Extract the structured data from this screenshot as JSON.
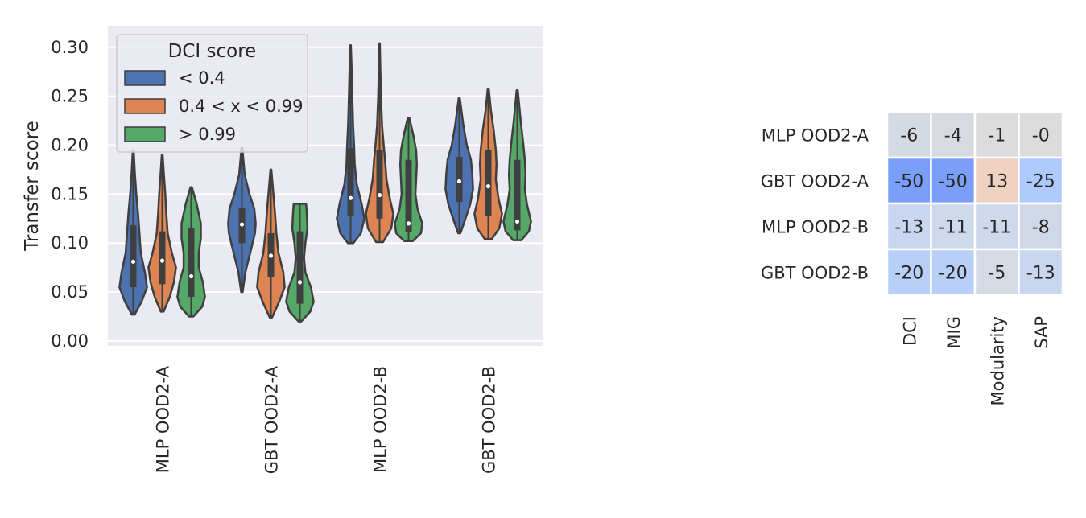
{
  "chart_data": [
    {
      "type": "violin",
      "ylabel": "Transfer score",
      "xlabel": "",
      "ylim": [
        -0.005,
        0.322
      ],
      "yticks": [
        "0.00",
        "0.05",
        "0.10",
        "0.15",
        "0.20",
        "0.25",
        "0.30"
      ],
      "grid": true,
      "legend": {
        "title": "DCI score",
        "placement": "top-left",
        "items": [
          "< 0.4",
          "0.4 < x < 0.99",
          "> 0.99"
        ]
      },
      "categories": [
        "MLP  OOD2-A",
        "GBT  OOD2-A",
        "MLP  OOD2-B",
        "GBT  OOD2-B"
      ],
      "series": [
        {
          "name": "< 0.4",
          "color": "#4c72b0",
          "groups": [
            {
              "min": 0.027,
              "max": 0.195,
              "q1": 0.055,
              "median": 0.081,
              "q3": 0.118,
              "profile": [
                [
                  0.027,
                  0.1
                ],
                [
                  0.04,
                  0.6
                ],
                [
                  0.055,
                  1.0
                ],
                [
                  0.07,
                  0.85
                ],
                [
                  0.09,
                  0.55
                ],
                [
                  0.11,
                  0.45
                ],
                [
                  0.13,
                  0.35
                ],
                [
                  0.15,
                  0.22
                ],
                [
                  0.17,
                  0.12
                ],
                [
                  0.195,
                  0.03
                ]
              ]
            },
            {
              "min": 0.05,
              "max": 0.197,
              "q1": 0.1,
              "median": 0.119,
              "q3": 0.136,
              "profile": [
                [
                  0.05,
                  0.05
                ],
                [
                  0.07,
                  0.25
                ],
                [
                  0.09,
                  0.6
                ],
                [
                  0.11,
                  0.95
                ],
                [
                  0.12,
                  1.0
                ],
                [
                  0.135,
                  0.9
                ],
                [
                  0.15,
                  0.55
                ],
                [
                  0.17,
                  0.2
                ],
                [
                  0.197,
                  0.03
                ]
              ]
            },
            {
              "min": 0.1,
              "max": 0.302,
              "q1": 0.128,
              "median": 0.146,
              "q3": 0.197,
              "profile": [
                [
                  0.1,
                  0.2
                ],
                [
                  0.11,
                  0.75
                ],
                [
                  0.125,
                  1.0
                ],
                [
                  0.14,
                  0.8
                ],
                [
                  0.16,
                  0.45
                ],
                [
                  0.18,
                  0.3
                ],
                [
                  0.2,
                  0.25
                ],
                [
                  0.22,
                  0.18
                ],
                [
                  0.25,
                  0.12
                ],
                [
                  0.28,
                  0.07
                ],
                [
                  0.302,
                  0.02
                ]
              ]
            },
            {
              "min": 0.11,
              "max": 0.248,
              "q1": 0.142,
              "median": 0.163,
              "q3": 0.188,
              "profile": [
                [
                  0.11,
                  0.08
                ],
                [
                  0.125,
                  0.45
                ],
                [
                  0.14,
                  0.8
                ],
                [
                  0.155,
                  1.0
                ],
                [
                  0.17,
                  0.95
                ],
                [
                  0.185,
                  0.85
                ],
                [
                  0.2,
                  0.55
                ],
                [
                  0.22,
                  0.3
                ],
                [
                  0.248,
                  0.04
                ]
              ]
            }
          ]
        },
        {
          "name": "0.4 < x < 0.99",
          "color": "#dd8452",
          "groups": [
            {
              "min": 0.03,
              "max": 0.19,
              "q1": 0.058,
              "median": 0.082,
              "q3": 0.112,
              "profile": [
                [
                  0.03,
                  0.1
                ],
                [
                  0.045,
                  0.55
                ],
                [
                  0.06,
                  0.85
                ],
                [
                  0.075,
                  1.0
                ],
                [
                  0.09,
                  0.7
                ],
                [
                  0.11,
                  0.4
                ],
                [
                  0.13,
                  0.3
                ],
                [
                  0.15,
                  0.22
                ],
                [
                  0.17,
                  0.12
                ],
                [
                  0.19,
                  0.03
                ]
              ]
            },
            {
              "min": 0.024,
              "max": 0.175,
              "q1": 0.065,
              "median": 0.087,
              "q3": 0.11,
              "profile": [
                [
                  0.024,
                  0.08
                ],
                [
                  0.04,
                  0.6
                ],
                [
                  0.055,
                  1.0
                ],
                [
                  0.07,
                  0.9
                ],
                [
                  0.09,
                  0.55
                ],
                [
                  0.11,
                  0.4
                ],
                [
                  0.13,
                  0.3
                ],
                [
                  0.15,
                  0.18
                ],
                [
                  0.175,
                  0.03
                ]
              ]
            },
            {
              "min": 0.101,
              "max": 0.304,
              "q1": 0.125,
              "median": 0.149,
              "q3": 0.195,
              "profile": [
                [
                  0.101,
                  0.25
                ],
                [
                  0.115,
                  0.85
                ],
                [
                  0.13,
                  1.0
                ],
                [
                  0.145,
                  0.75
                ],
                [
                  0.165,
                  0.5
                ],
                [
                  0.185,
                  0.4
                ],
                [
                  0.2,
                  0.3
                ],
                [
                  0.22,
                  0.18
                ],
                [
                  0.25,
                  0.1
                ],
                [
                  0.28,
                  0.05
                ],
                [
                  0.304,
                  0.02
                ]
              ]
            },
            {
              "min": 0.104,
              "max": 0.257,
              "q1": 0.128,
              "median": 0.158,
              "q3": 0.195,
              "profile": [
                [
                  0.104,
                  0.25
                ],
                [
                  0.115,
                  0.8
                ],
                [
                  0.13,
                  1.0
                ],
                [
                  0.145,
                  0.75
                ],
                [
                  0.165,
                  0.55
                ],
                [
                  0.18,
                  0.6
                ],
                [
                  0.195,
                  0.55
                ],
                [
                  0.215,
                  0.4
                ],
                [
                  0.235,
                  0.2
                ],
                [
                  0.257,
                  0.04
                ]
              ]
            }
          ]
        },
        {
          "name": "> 0.99",
          "color": "#55a868",
          "groups": [
            {
              "min": 0.025,
              "max": 0.157,
              "q1": 0.045,
              "median": 0.066,
              "q3": 0.115,
              "profile": [
                [
                  0.025,
                  0.15
                ],
                [
                  0.035,
                  0.8
                ],
                [
                  0.045,
                  1.0
                ],
                [
                  0.06,
                  0.85
                ],
                [
                  0.075,
                  0.55
                ],
                [
                  0.09,
                  0.55
                ],
                [
                  0.105,
                  0.7
                ],
                [
                  0.12,
                  0.7
                ],
                [
                  0.14,
                  0.4
                ],
                [
                  0.157,
                  0.05
                ]
              ]
            },
            {
              "min": 0.02,
              "max": 0.14,
              "q1": 0.038,
              "median": 0.06,
              "q3": 0.112,
              "profile": [
                [
                  0.02,
                  0.1
                ],
                [
                  0.03,
                  0.75
                ],
                [
                  0.04,
                  1.0
                ],
                [
                  0.055,
                  0.8
                ],
                [
                  0.07,
                  0.4
                ],
                [
                  0.085,
                  0.3
                ],
                [
                  0.1,
                  0.4
                ],
                [
                  0.115,
                  0.55
                ],
                [
                  0.13,
                  0.5
                ],
                [
                  0.14,
                  0.45
                ]
              ]
            },
            {
              "min": 0.102,
              "max": 0.228,
              "q1": 0.111,
              "median": 0.12,
              "q3": 0.185,
              "profile": [
                [
                  0.102,
                  0.3
                ],
                [
                  0.11,
                  0.9
                ],
                [
                  0.12,
                  1.0
                ],
                [
                  0.135,
                  0.65
                ],
                [
                  0.15,
                  0.5
                ],
                [
                  0.165,
                  0.55
                ],
                [
                  0.18,
                  0.6
                ],
                [
                  0.195,
                  0.55
                ],
                [
                  0.21,
                  0.35
                ],
                [
                  0.228,
                  0.05
                ]
              ]
            },
            {
              "min": 0.103,
              "max": 0.256,
              "q1": 0.113,
              "median": 0.122,
              "q3": 0.185,
              "profile": [
                [
                  0.103,
                  0.3
                ],
                [
                  0.112,
                  0.85
                ],
                [
                  0.122,
                  1.0
                ],
                [
                  0.14,
                  0.7
                ],
                [
                  0.155,
                  0.55
                ],
                [
                  0.17,
                  0.6
                ],
                [
                  0.185,
                  0.55
                ],
                [
                  0.2,
                  0.45
                ],
                [
                  0.225,
                  0.25
                ],
                [
                  0.256,
                  0.04
                ]
              ]
            }
          ]
        }
      ]
    },
    {
      "type": "heatmap",
      "rows": [
        "MLP  OOD2-A",
        "GBT  OOD2-A",
        "MLP  OOD2-B",
        "GBT  OOD2-B"
      ],
      "columns": [
        "DCI",
        "MIG",
        "Modularity",
        "SAP"
      ],
      "values": [
        [
          -6,
          -4,
          -1,
          0
        ],
        [
          -50,
          -50,
          13,
          -25
        ],
        [
          -13,
          -11,
          -11,
          -8
        ],
        [
          -20,
          -20,
          -5,
          -13
        ]
      ],
      "labels": [
        [
          "-6",
          "-4",
          "-1",
          "-0"
        ],
        [
          "-50",
          "-50",
          "13",
          "-25"
        ],
        [
          "-13",
          "-11",
          "-11",
          "-8"
        ],
        [
          "-20",
          "-20",
          "-5",
          "-13"
        ]
      ],
      "colors": [
        [
          "#d4d9e2",
          "#d7dae0",
          "#dcdcdd",
          "#dddcdc"
        ],
        [
          "#7b9ff9",
          "#7b9ff9",
          "#efd1c2",
          "#aec9fc"
        ],
        [
          "#c8d6f0",
          "#cdd9ec",
          "#cdd9ec",
          "#d0d8e8"
        ],
        [
          "#b8cff8",
          "#b8cff8",
          "#d5dbe4",
          "#c8d6f0"
        ]
      ]
    }
  ]
}
